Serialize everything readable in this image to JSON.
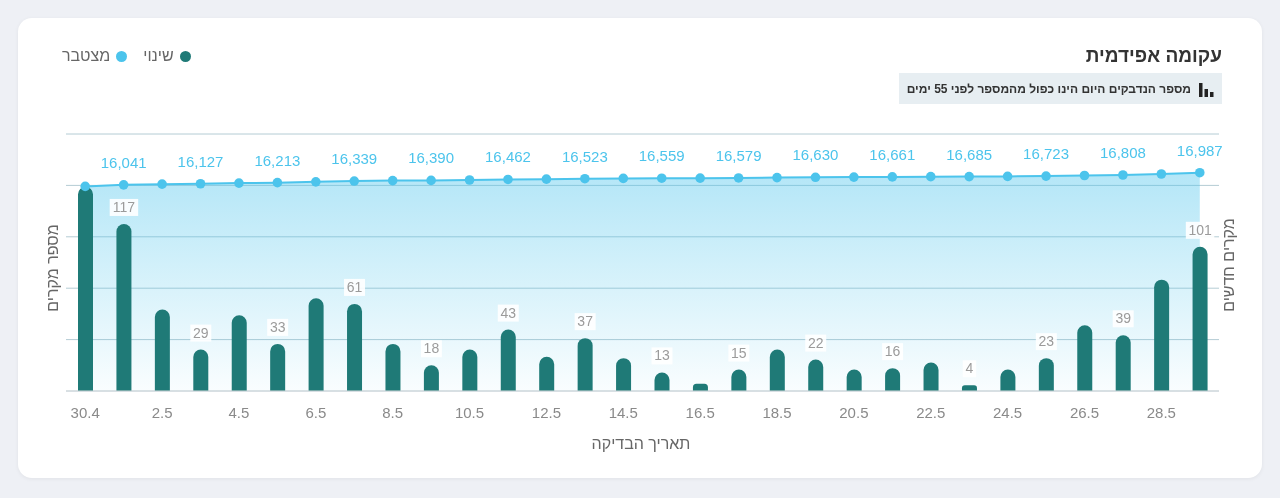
{
  "chart_data": {
    "type": "bar",
    "title": "עקומה אפידמית",
    "subtitle": "מספר הנדבקים היום הינו כפול מהמספר לפני 55 ימים",
    "xlabel": "תאריך הבדיקה",
    "ylabel": "מספר מקרים",
    "y2label": "מקרים חדשים",
    "categories": [
      "30.4",
      null,
      "2.5",
      null,
      "4.5",
      null,
      "6.5",
      null,
      "8.5",
      null,
      "10.5",
      null,
      "12.5",
      null,
      "14.5",
      null,
      "16.5",
      null,
      "18.5",
      null,
      "20.5",
      null,
      "22.5",
      null,
      "24.5",
      null,
      "26.5",
      null,
      "28.5",
      null
    ],
    "series": [
      {
        "name": "שינוי",
        "color": "#1f7a77",
        "values": [
          143,
          117,
          57,
          29,
          53,
          33,
          65,
          61,
          33,
          18,
          29,
          43,
          24,
          37,
          23,
          13,
          5,
          15,
          29,
          22,
          15,
          16,
          20,
          4,
          15,
          23,
          46,
          39,
          78,
          101
        ],
        "value_labels": [
          null,
          "117",
          null,
          "29",
          null,
          "33",
          null,
          "61",
          null,
          "18",
          null,
          "43",
          null,
          "37",
          null,
          "13",
          null,
          "15",
          null,
          "22",
          null,
          "16",
          null,
          "4",
          null,
          "23",
          null,
          "39",
          null,
          "101"
        ]
      },
      {
        "name": "מצטבר",
        "type": "area",
        "axis": "y2",
        "color": "#4cc4ec",
        "values": [
          15924,
          16041,
          16098,
          16127,
          16180,
          16213,
          16278,
          16339,
          16372,
          16390,
          16419,
          16462,
          16486,
          16523,
          16546,
          16559,
          16564,
          16579,
          16608,
          16630,
          16645,
          16661,
          16681,
          16685,
          16700,
          16723,
          16769,
          16808,
          16886,
          16987
        ],
        "value_labels": [
          null,
          "16,041",
          null,
          "16,127",
          null,
          "16,213",
          null,
          "16,339",
          null,
          "16,390",
          null,
          "16,462",
          null,
          "16,523",
          null,
          "16,559",
          null,
          "16,579",
          null,
          "16,630",
          null,
          "16,661",
          null,
          "16,685",
          null,
          "16,723",
          null,
          "16,808",
          null,
          "16,987"
        ]
      }
    ],
    "ylim": [
      0,
      180
    ],
    "y2lim": [
      0,
      20000
    ],
    "grid": "y",
    "legend": "top left",
    "marker": "circle",
    "tick_labels": "x"
  }
}
